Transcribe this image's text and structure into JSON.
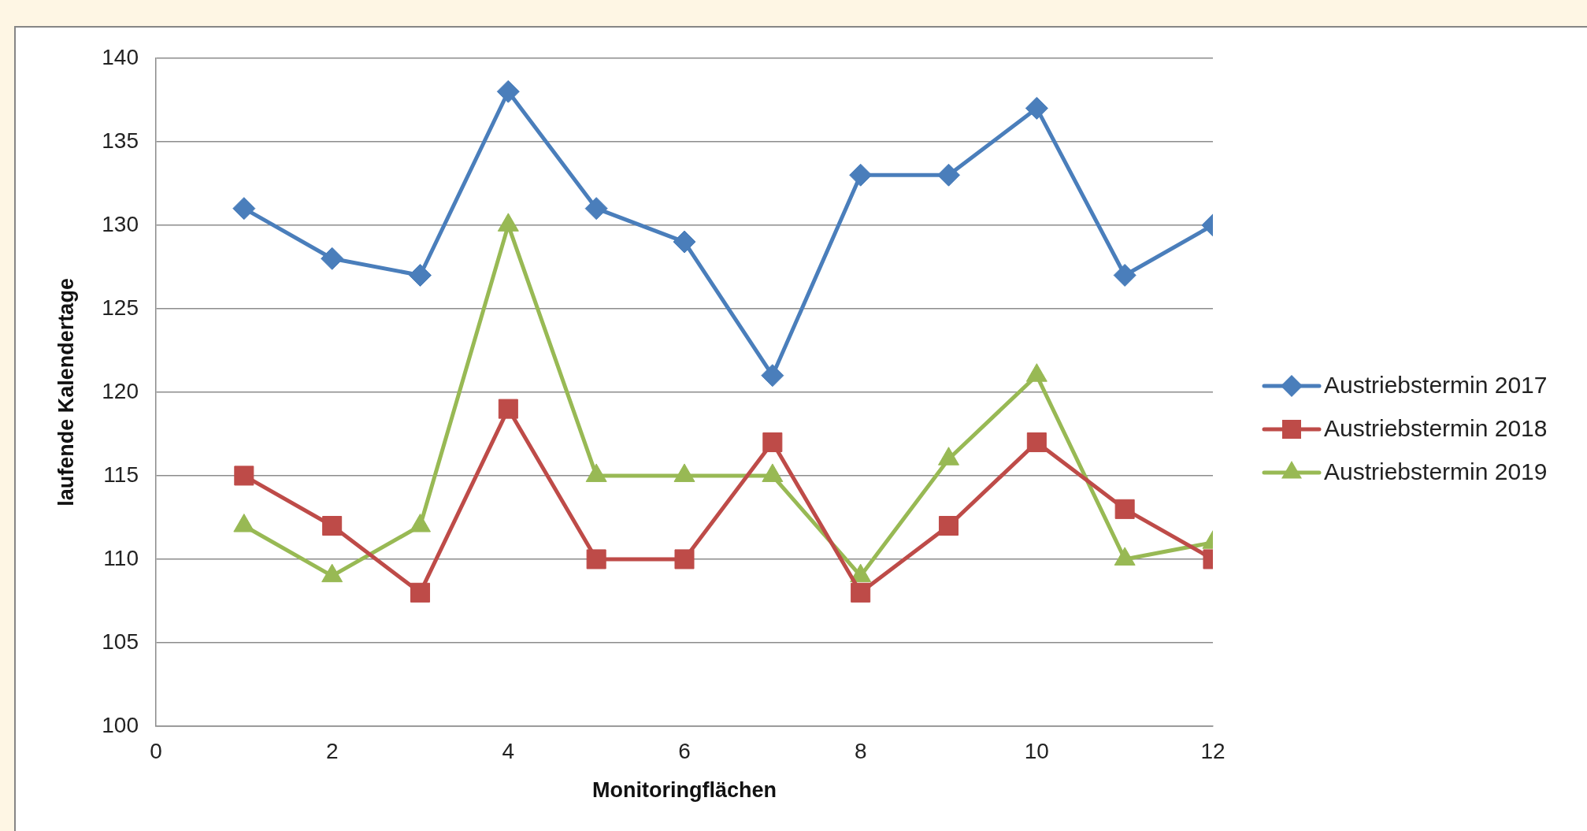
{
  "chart_data": {
    "type": "line",
    "xlabel": "Monitoringflächen",
    "ylabel": "laufende Kalendertage",
    "x": [
      1,
      2,
      3,
      4,
      5,
      6,
      7,
      8,
      9,
      10,
      11,
      12
    ],
    "xlim": [
      0,
      12
    ],
    "xticks": [
      0,
      2,
      4,
      6,
      8,
      10,
      12
    ],
    "ylim": [
      100,
      140
    ],
    "yticks": [
      100,
      105,
      110,
      115,
      120,
      125,
      130,
      135,
      140
    ],
    "grid": "y",
    "legend": "right",
    "series": [
      {
        "name": "Austriebstermin 2017",
        "color": "#4a7ebb",
        "marker": "diamond",
        "values": [
          131,
          128,
          127,
          138,
          131,
          129,
          121,
          133,
          133,
          137,
          127,
          130
        ]
      },
      {
        "name": "Austriebstermin 2018",
        "color": "#be4b48",
        "marker": "square",
        "values": [
          115,
          112,
          108,
          119,
          110,
          110,
          117,
          108,
          112,
          117,
          113,
          110
        ]
      },
      {
        "name": "Austriebstermin 2019",
        "color": "#98b954",
        "marker": "triangle",
        "values": [
          112,
          109,
          112,
          130,
          115,
          115,
          115,
          109,
          116,
          121,
          110,
          111
        ]
      }
    ]
  }
}
